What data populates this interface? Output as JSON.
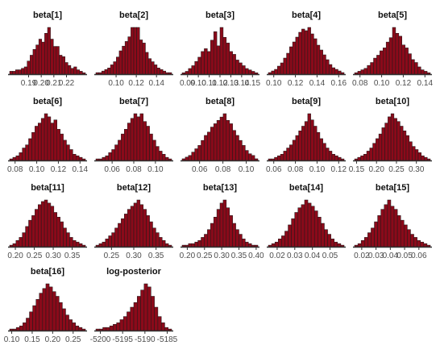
{
  "chart_data": {
    "type": "histogram-grid",
    "bar_color": "#8b0a1a",
    "outline_color": "#1a1a1a",
    "panels": [
      {
        "title": "beta[1]",
        "xlim": [
          0.175,
          0.235
        ],
        "ticks": [
          "0.19",
          "0.20",
          "0.21",
          "0.22"
        ],
        "tick_values": [
          0.19,
          0.2,
          0.21,
          0.22
        ],
        "counts": [
          2,
          2,
          3,
          3,
          4,
          5,
          9,
          13,
          17,
          20,
          24,
          22,
          28,
          32,
          24,
          19,
          19,
          13,
          12,
          8,
          6,
          4,
          5,
          3,
          2,
          1
        ]
      },
      {
        "title": "beta[2]",
        "xlim": [
          0.08,
          0.155
        ],
        "ticks": [
          "0.10",
          "0.12",
          "0.14"
        ],
        "tick_values": [
          0.1,
          0.12,
          0.14
        ],
        "counts": [
          1,
          1,
          2,
          3,
          4,
          6,
          8,
          11,
          15,
          18,
          21,
          24,
          30,
          30,
          30,
          22,
          20,
          14,
          10,
          8,
          6,
          4,
          3,
          2,
          1,
          1
        ]
      },
      {
        "title": "beta[3]",
        "xlim": [
          0.085,
          0.155
        ],
        "ticks": [
          "0.09",
          "0.10",
          "0.11",
          "0.12",
          "0.13",
          "0.14",
          "0.15"
        ],
        "tick_values": [
          0.09,
          0.1,
          0.11,
          0.12,
          0.13,
          0.14,
          0.15
        ],
        "counts": [
          1,
          2,
          4,
          6,
          9,
          12,
          16,
          18,
          16,
          24,
          30,
          20,
          33,
          26,
          22,
          16,
          14,
          10,
          8,
          6,
          4,
          3,
          2,
          1
        ]
      },
      {
        "title": "beta[4]",
        "xlim": [
          0.095,
          0.165
        ],
        "ticks": [
          "0.10",
          "0.12",
          "0.14",
          "0.16"
        ],
        "tick_values": [
          0.1,
          0.12,
          0.14,
          0.16
        ],
        "counts": [
          1,
          2,
          3,
          5,
          7,
          10,
          13,
          17,
          20,
          23,
          26,
          28,
          27,
          29,
          25,
          22,
          18,
          15,
          12,
          9,
          6,
          4,
          3,
          2,
          1
        ]
      },
      {
        "title": "beta[5]",
        "xlim": [
          0.075,
          0.145
        ],
        "ticks": [
          "0.08",
          "0.10",
          "0.12",
          "0.14"
        ],
        "tick_values": [
          0.08,
          0.1,
          0.12,
          0.14
        ],
        "counts": [
          1,
          2,
          3,
          4,
          6,
          8,
          11,
          13,
          16,
          18,
          22,
          25,
          32,
          28,
          26,
          20,
          18,
          14,
          10,
          8,
          5,
          3,
          2,
          1
        ]
      },
      {
        "title": "beta[6]",
        "xlim": [
          0.075,
          0.145
        ],
        "ticks": [
          "0.08",
          "0.10",
          "0.12",
          "0.14"
        ],
        "tick_values": [
          0.08,
          0.1,
          0.12,
          0.14
        ],
        "counts": [
          1,
          2,
          3,
          5,
          8,
          10,
          14,
          18,
          22,
          24,
          27,
          30,
          28,
          24,
          26,
          20,
          17,
          13,
          10,
          7,
          4,
          3,
          2,
          1
        ]
      },
      {
        "title": "beta[7]",
        "xlim": [
          0.045,
          0.115
        ],
        "ticks": [
          "0.06",
          "0.08",
          "0.10"
        ],
        "tick_values": [
          0.06,
          0.08,
          0.1
        ],
        "counts": [
          1,
          1,
          2,
          3,
          5,
          7,
          10,
          13,
          17,
          20,
          24,
          27,
          30,
          28,
          30,
          25,
          22,
          17,
          13,
          9,
          6,
          4,
          2,
          1
        ]
      },
      {
        "title": "beta[8]",
        "xlim": [
          0.045,
          0.11
        ],
        "ticks": [
          "0.06",
          "0.08",
          "0.10"
        ],
        "tick_values": [
          0.06,
          0.08,
          0.1
        ],
        "counts": [
          1,
          2,
          3,
          5,
          7,
          9,
          12,
          15,
          17,
          20,
          22,
          24,
          26,
          28,
          24,
          22,
          18,
          15,
          12,
          9,
          6,
          4,
          3,
          1
        ]
      },
      {
        "title": "beta[9]",
        "xlim": [
          0.055,
          0.125
        ],
        "ticks": [
          "0.06",
          "0.08",
          "0.10",
          "0.12"
        ],
        "tick_values": [
          0.06,
          0.08,
          0.1,
          0.12
        ],
        "counts": [
          1,
          1,
          2,
          3,
          4,
          6,
          8,
          10,
          13,
          16,
          19,
          22,
          25,
          30,
          26,
          22,
          18,
          14,
          11,
          8,
          6,
          4,
          3,
          2,
          1
        ]
      },
      {
        "title": "beta[10]",
        "xlim": [
          0.145,
          0.335
        ],
        "ticks": [
          "0.15",
          "0.20",
          "0.25",
          "0.30"
        ],
        "tick_values": [
          0.15,
          0.2,
          0.25,
          0.3
        ],
        "counts": [
          1,
          2,
          3,
          4,
          6,
          8,
          11,
          14,
          17,
          21,
          24,
          28,
          30,
          27,
          25,
          22,
          19,
          16,
          12,
          9,
          7,
          5,
          3,
          2,
          1
        ]
      },
      {
        "title": "beta[11]",
        "xlim": [
          0.185,
          0.385
        ],
        "ticks": [
          "0.20",
          "0.25",
          "0.30",
          "0.35"
        ],
        "tick_values": [
          0.2,
          0.25,
          0.3,
          0.35
        ],
        "counts": [
          1,
          2,
          4,
          6,
          9,
          13,
          17,
          20,
          24,
          27,
          29,
          30,
          28,
          26,
          22,
          19,
          16,
          12,
          9,
          6,
          4,
          3,
          2,
          1
        ]
      },
      {
        "title": "beta[12]",
        "xlim": [
          0.215,
          0.385
        ],
        "ticks": [
          "0.25",
          "0.30",
          "0.35"
        ],
        "tick_values": [
          0.25,
          0.3,
          0.35
        ],
        "counts": [
          1,
          2,
          3,
          5,
          7,
          9,
          12,
          15,
          18,
          21,
          24,
          26,
          28,
          30,
          27,
          24,
          20,
          16,
          12,
          9,
          6,
          4,
          2,
          1
        ]
      },
      {
        "title": "beta[13]",
        "xlim": [
          0.185,
          0.405
        ],
        "ticks": [
          "0.20",
          "0.25",
          "0.30",
          "0.35",
          "0.40"
        ],
        "tick_values": [
          0.2,
          0.25,
          0.3,
          0.35,
          0.4
        ],
        "counts": [
          1,
          1,
          2,
          2,
          3,
          4,
          6,
          8,
          11,
          15,
          19,
          24,
          28,
          30,
          25,
          20,
          15,
          11,
          8,
          5,
          3,
          2,
          1,
          1
        ]
      },
      {
        "title": "beta[14]",
        "xlim": [
          0.015,
          0.058
        ],
        "ticks": [
          "0.02",
          "0.03",
          "0.04",
          "0.05"
        ],
        "tick_values": [
          0.02,
          0.03,
          0.04,
          0.05
        ],
        "counts": [
          1,
          2,
          3,
          5,
          7,
          10,
          14,
          18,
          22,
          25,
          27,
          30,
          28,
          26,
          23,
          19,
          15,
          11,
          8,
          5,
          3,
          2,
          1
        ]
      },
      {
        "title": "beta[15]",
        "xlim": [
          0.015,
          0.068
        ],
        "ticks": [
          "0.02",
          "0.03",
          "0.04",
          "0.05",
          "0.06"
        ],
        "tick_values": [
          0.02,
          0.03,
          0.04,
          0.05,
          0.06
        ],
        "counts": [
          1,
          2,
          4,
          6,
          9,
          12,
          16,
          20,
          24,
          27,
          30,
          26,
          24,
          20,
          17,
          14,
          11,
          8,
          6,
          4,
          3,
          2,
          1
        ]
      },
      {
        "title": "beta[16]",
        "xlim": [
          0.095,
          0.28
        ],
        "ticks": [
          "0.10",
          "0.15",
          "0.20",
          "0.25"
        ],
        "tick_values": [
          0.1,
          0.15,
          0.2,
          0.25
        ],
        "counts": [
          1,
          1,
          2,
          3,
          5,
          8,
          12,
          16,
          20,
          24,
          27,
          30,
          28,
          25,
          22,
          18,
          14,
          10,
          7,
          5,
          3,
          2,
          1
        ]
      },
      {
        "title": "log-posterior",
        "xlim": [
          -5201,
          -5184
        ],
        "ticks": [
          "-5200",
          "-5195",
          "-5190",
          "-5185"
        ],
        "tick_values": [
          -5200,
          -5195,
          -5190,
          -5185
        ],
        "counts": [
          1,
          1,
          2,
          2,
          3,
          4,
          5,
          7,
          9,
          12,
          15,
          18,
          22,
          26,
          30,
          28,
          22,
          15,
          9,
          5,
          2,
          1
        ]
      }
    ]
  }
}
